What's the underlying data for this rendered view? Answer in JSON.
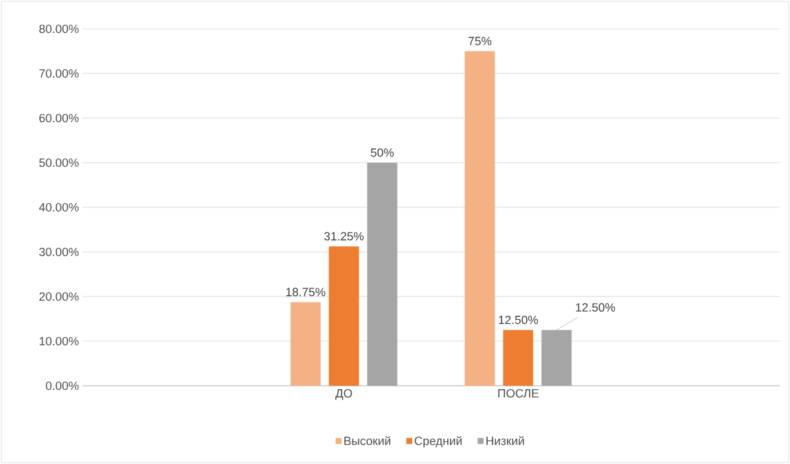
{
  "chart_data": {
    "type": "bar",
    "categories": [
      null,
      "ДО",
      "ПОСЛЕ",
      null
    ],
    "series": [
      {
        "name": "Высокий",
        "color": "#f4b183",
        "values": [
          null,
          18.75,
          75,
          null
        ],
        "value_labels": [
          null,
          "18.75%",
          "75%",
          null
        ]
      },
      {
        "name": "Средний",
        "color": "#ed7d31",
        "values": [
          null,
          31.25,
          12.5,
          null
        ],
        "value_labels": [
          null,
          "31.25%",
          "12.50%",
          null
        ]
      },
      {
        "name": "Низкий",
        "color": "#a5a5a5",
        "values": [
          null,
          50,
          12.5,
          null
        ],
        "value_labels": [
          null,
          "50%",
          "12.50%",
          null
        ]
      }
    ],
    "ylim": [
      0,
      80
    ],
    "yticks": [
      {
        "value": 0,
        "label": "0.00%"
      },
      {
        "value": 10,
        "label": "10.00%"
      },
      {
        "value": 20,
        "label": "20.00%"
      },
      {
        "value": 30,
        "label": "30.00%"
      },
      {
        "value": 40,
        "label": "40.00%"
      },
      {
        "value": 50,
        "label": "50.00%"
      },
      {
        "value": 60,
        "label": "60.00%"
      },
      {
        "value": 70,
        "label": "70.00%"
      },
      {
        "value": 80,
        "label": "80.00%"
      }
    ],
    "grid": "y",
    "legend": "bottom"
  }
}
